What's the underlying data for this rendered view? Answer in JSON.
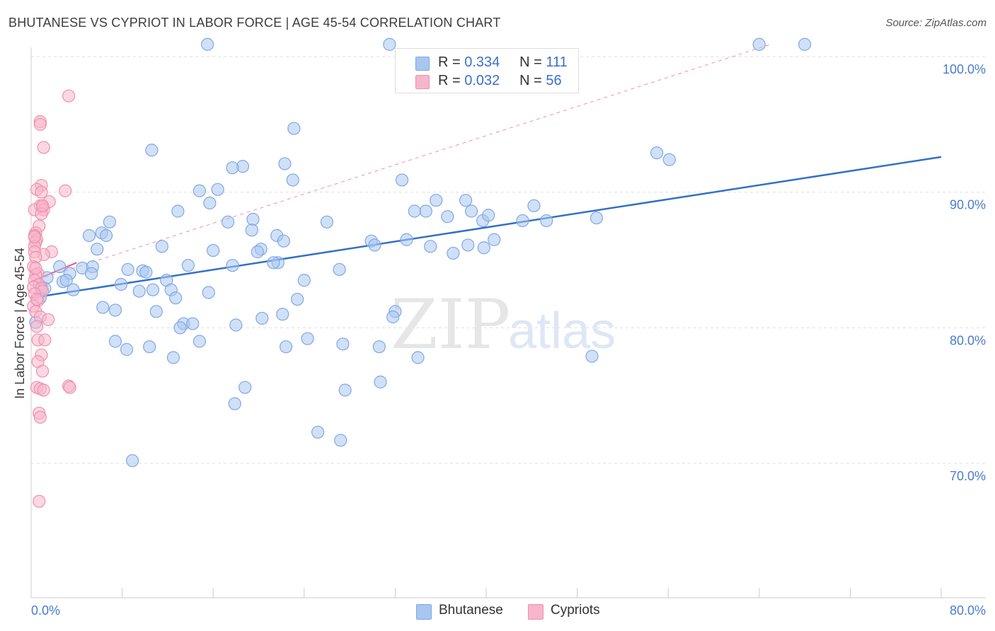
{
  "title": "BHUTANESE VS CYPRIOT IN LABOR FORCE | AGE 45-54 CORRELATION CHART",
  "source": "Source: ZipAtlas.com",
  "watermark": {
    "zip": "ZIP",
    "atlas": "atlas"
  },
  "legend": {
    "rows": [
      {
        "r_label": "R =",
        "r_value": "0.334",
        "n_label": "N =",
        "n_value": "111",
        "color": "#a9c6f0"
      },
      {
        "r_label": "R =",
        "r_value": "0.032",
        "n_label": "N =",
        "n_value": "56",
        "color": "#f7b6cb"
      }
    ]
  },
  "bottom_legend": [
    {
      "label": "Bhutanese",
      "color": "#a9c6f0"
    },
    {
      "label": "Cypriots",
      "color": "#f7b6cb"
    }
  ],
  "chart_data": {
    "type": "scatter",
    "ylabel": "In Labor Force | Age 45-54",
    "xlabel": "",
    "xlim": [
      0,
      80
    ],
    "ylim": [
      60,
      102
    ],
    "x_ticks": [
      "0.0%",
      "80.0%"
    ],
    "y_ticks": [
      {
        "value": 100,
        "label": "100.0%"
      },
      {
        "value": 90,
        "label": "90.0%"
      },
      {
        "value": 80,
        "label": "80.0%"
      },
      {
        "value": 70,
        "label": "70.0%"
      }
    ],
    "grid": true,
    "series": [
      {
        "name": "Bhutanese",
        "color": "#7ea8e6",
        "fill": "#a9c6f0",
        "trend": {
          "x": [
            0,
            80
          ],
          "y": [
            82.2,
            92.6
          ],
          "color": "#3470c8"
        },
        "points": [
          [
            15.5,
            100.9
          ],
          [
            31.5,
            100.9
          ],
          [
            64.0,
            100.9
          ],
          [
            68.0,
            100.9
          ],
          [
            23.1,
            94.7
          ],
          [
            10.6,
            93.1
          ],
          [
            56.1,
            92.4
          ],
          [
            55.0,
            92.9
          ],
          [
            18.6,
            91.9
          ],
          [
            17.7,
            91.8
          ],
          [
            22.3,
            92.1
          ],
          [
            23.0,
            90.9
          ],
          [
            32.6,
            90.9
          ],
          [
            14.8,
            90.1
          ],
          [
            16.4,
            90.2
          ],
          [
            15.7,
            89.2
          ],
          [
            35.6,
            89.4
          ],
          [
            38.2,
            89.4
          ],
          [
            44.2,
            89.0
          ],
          [
            38.7,
            88.6
          ],
          [
            12.9,
            88.6
          ],
          [
            33.7,
            88.6
          ],
          [
            34.7,
            88.6
          ],
          [
            36.6,
            88.2
          ],
          [
            39.7,
            87.9
          ],
          [
            40.2,
            88.3
          ],
          [
            43.2,
            87.9
          ],
          [
            49.7,
            88.1
          ],
          [
            6.9,
            87.8
          ],
          [
            19.5,
            88.0
          ],
          [
            17.3,
            87.8
          ],
          [
            26.0,
            87.8
          ],
          [
            5.1,
            86.8
          ],
          [
            6.2,
            87.0
          ],
          [
            6.6,
            86.8
          ],
          [
            19.4,
            87.2
          ],
          [
            21.6,
            86.8
          ],
          [
            22.2,
            86.4
          ],
          [
            29.9,
            86.4
          ],
          [
            30.2,
            86.1
          ],
          [
            38.4,
            86.1
          ],
          [
            40.7,
            86.5
          ],
          [
            11.5,
            86.0
          ],
          [
            16.0,
            85.7
          ],
          [
            20.2,
            85.8
          ],
          [
            35.1,
            86.0
          ],
          [
            37.1,
            85.5
          ],
          [
            39.8,
            85.9
          ],
          [
            5.8,
            85.8
          ],
          [
            19.9,
            85.6
          ],
          [
            13.8,
            84.6
          ],
          [
            17.7,
            84.6
          ],
          [
            2.5,
            84.5
          ],
          [
            4.5,
            84.4
          ],
          [
            5.4,
            84.5
          ],
          [
            8.5,
            84.3
          ],
          [
            9.8,
            84.2
          ],
          [
            10.1,
            84.1
          ],
          [
            21.7,
            84.8
          ],
          [
            21.3,
            84.8
          ],
          [
            27.1,
            84.3
          ],
          [
            3.4,
            84.0
          ],
          [
            5.3,
            84.0
          ],
          [
            1.4,
            83.7
          ],
          [
            2.8,
            83.4
          ],
          [
            3.1,
            83.5
          ],
          [
            7.9,
            83.2
          ],
          [
            11.9,
            83.5
          ],
          [
            24.0,
            83.5
          ],
          [
            0.9,
            83.0
          ],
          [
            1.2,
            82.9
          ],
          [
            3.7,
            82.8
          ],
          [
            9.5,
            82.7
          ],
          [
            12.3,
            82.8
          ],
          [
            15.6,
            82.6
          ],
          [
            10.7,
            82.8
          ],
          [
            0.8,
            82.2
          ],
          [
            12.7,
            82.2
          ],
          [
            23.4,
            82.1
          ],
          [
            6.3,
            81.5
          ],
          [
            7.4,
            81.3
          ],
          [
            11.0,
            81.2
          ],
          [
            22.1,
            81.0
          ],
          [
            32.0,
            81.2
          ],
          [
            31.8,
            80.8
          ],
          [
            20.3,
            80.7
          ],
          [
            13.4,
            80.3
          ],
          [
            14.2,
            80.3
          ],
          [
            18.0,
            80.2
          ],
          [
            13.1,
            80.0
          ],
          [
            0.4,
            80.4
          ],
          [
            24.3,
            79.2
          ],
          [
            7.4,
            79.0
          ],
          [
            14.8,
            79.0
          ],
          [
            27.4,
            78.8
          ],
          [
            30.6,
            78.6
          ],
          [
            8.4,
            78.4
          ],
          [
            10.4,
            78.6
          ],
          [
            22.4,
            78.6
          ],
          [
            34.0,
            77.8
          ],
          [
            49.3,
            77.9
          ],
          [
            12.5,
            77.8
          ],
          [
            30.7,
            76.0
          ],
          [
            18.8,
            75.6
          ],
          [
            27.6,
            75.4
          ],
          [
            17.9,
            74.4
          ],
          [
            25.2,
            72.3
          ],
          [
            27.2,
            71.7
          ],
          [
            8.9,
            70.2
          ],
          [
            45.3,
            87.9
          ],
          [
            33.0,
            86.5
          ]
        ]
      },
      {
        "name": "Cypriots",
        "color": "#ef8fb0",
        "fill": "#f7b6cb",
        "trend": {
          "x": [
            0,
            4.0
          ],
          "y": [
            83.4,
            84.8
          ],
          "color": "#e8578a"
        },
        "extension": {
          "x": [
            0,
            65.0
          ],
          "y": [
            83.4,
            100.9
          ],
          "color": "#ef8fb0"
        },
        "points": [
          [
            3.3,
            97.1
          ],
          [
            0.8,
            95.2
          ],
          [
            0.8,
            95.0
          ],
          [
            1.1,
            93.3
          ],
          [
            0.9,
            90.5
          ],
          [
            0.5,
            90.2
          ],
          [
            0.9,
            90.0
          ],
          [
            3.0,
            90.1
          ],
          [
            1.6,
            89.3
          ],
          [
            0.8,
            89.0
          ],
          [
            1.0,
            88.9
          ],
          [
            1.1,
            88.7
          ],
          [
            0.3,
            88.7
          ],
          [
            0.7,
            87.5
          ],
          [
            0.4,
            87.0
          ],
          [
            0.3,
            86.8
          ],
          [
            0.5,
            86.5
          ],
          [
            0.4,
            86.3
          ],
          [
            0.3,
            86.0
          ],
          [
            1.8,
            85.6
          ],
          [
            1.1,
            85.4
          ],
          [
            0.3,
            85.6
          ],
          [
            0.4,
            85.2
          ],
          [
            0.2,
            84.5
          ],
          [
            0.6,
            84.0
          ],
          [
            0.4,
            83.9
          ],
          [
            0.3,
            83.5
          ],
          [
            0.7,
            83.2
          ],
          [
            0.2,
            83.0
          ],
          [
            0.9,
            82.9
          ],
          [
            1.0,
            82.7
          ],
          [
            0.3,
            82.5
          ],
          [
            0.6,
            82.0
          ],
          [
            0.2,
            81.6
          ],
          [
            0.4,
            81.2
          ],
          [
            0.8,
            80.8
          ],
          [
            1.5,
            80.6
          ],
          [
            0.5,
            80.1
          ],
          [
            0.6,
            79.1
          ],
          [
            1.2,
            79.1
          ],
          [
            0.9,
            78.0
          ],
          [
            0.6,
            77.5
          ],
          [
            1.0,
            76.8
          ],
          [
            3.3,
            75.7
          ],
          [
            3.4,
            75.6
          ],
          [
            0.5,
            75.6
          ],
          [
            0.8,
            75.5
          ],
          [
            1.1,
            75.4
          ],
          [
            0.7,
            73.7
          ],
          [
            0.8,
            73.4
          ],
          [
            0.7,
            67.2
          ],
          [
            0.9,
            88.4
          ],
          [
            0.4,
            84.4
          ],
          [
            0.5,
            82.1
          ],
          [
            1.0,
            89.0
          ],
          [
            0.3,
            86.7
          ]
        ]
      }
    ]
  }
}
